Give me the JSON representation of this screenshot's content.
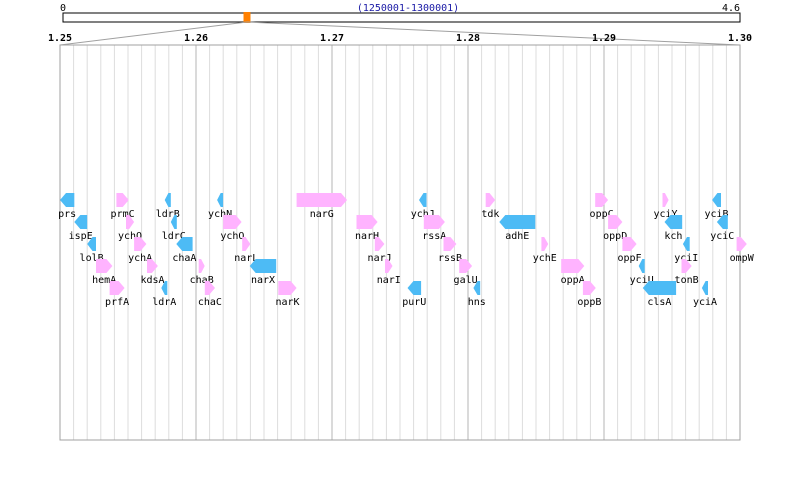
{
  "overview": {
    "start_label": "0",
    "end_label": "4.6",
    "range_label": "(1250001-1300001)",
    "genome_length_mb": 4.6,
    "window_start_mb": 1.25,
    "window_end_mb": 1.3,
    "marker_color": "#ff8000"
  },
  "detail": {
    "start_mb": 1.25,
    "end_mb": 1.3,
    "ticks": [
      {
        "pos": 1.25,
        "label": "1.25"
      },
      {
        "pos": 1.26,
        "label": "1.26"
      },
      {
        "pos": 1.27,
        "label": "1.27"
      },
      {
        "pos": 1.28,
        "label": "1.28"
      },
      {
        "pos": 1.29,
        "label": "1.29"
      },
      {
        "pos": 1.3,
        "label": "1.30"
      }
    ]
  },
  "colors": {
    "forward": "#ffb3ff",
    "reverse": "#4dbbf5",
    "axis": "#a0a0a0",
    "grid_minor": "#dddddd",
    "grid_major": "#b4b4b4"
  },
  "genes": [
    {
      "name": "prs",
      "start": 1.25,
      "end": 1.25105,
      "strand": "-",
      "row": 0
    },
    {
      "name": "prmC",
      "start": 1.25415,
      "end": 1.25505,
      "strand": "+",
      "row": 0
    },
    {
      "name": "ldrB",
      "start": 1.2577,
      "end": 1.25815,
      "strand": "-",
      "row": 0
    },
    {
      "name": "ychN",
      "start": 1.26155,
      "end": 1.26195,
      "strand": "-",
      "row": 0
    },
    {
      "name": "narG",
      "start": 1.2674,
      "end": 1.2711,
      "strand": "+",
      "row": 0
    },
    {
      "name": "ychJ",
      "start": 1.2764,
      "end": 1.27695,
      "strand": "-",
      "row": 0
    },
    {
      "name": "tdk",
      "start": 1.2813,
      "end": 1.282,
      "strand": "+",
      "row": 0
    },
    {
      "name": "oppC",
      "start": 1.28935,
      "end": 1.2903,
      "strand": "+",
      "row": 0
    },
    {
      "name": "yciY",
      "start": 1.2943,
      "end": 1.29475,
      "strand": "+",
      "row": 0
    },
    {
      "name": "yciB",
      "start": 1.29795,
      "end": 1.2986,
      "strand": "-",
      "row": 0
    },
    {
      "name": "ispE",
      "start": 1.25105,
      "end": 1.252,
      "strand": "-",
      "row": 1
    },
    {
      "name": "ychQ",
      "start": 1.25485,
      "end": 1.25545,
      "strand": "+",
      "row": 1
    },
    {
      "name": "ldrC",
      "start": 1.25815,
      "end": 1.25855,
      "strand": "-",
      "row": 1
    },
    {
      "name": "ychO",
      "start": 1.262,
      "end": 1.26335,
      "strand": "+",
      "row": 1
    },
    {
      "name": "narH",
      "start": 1.2718,
      "end": 1.27335,
      "strand": "+",
      "row": 1
    },
    {
      "name": "rssA",
      "start": 1.27675,
      "end": 1.2783,
      "strand": "+",
      "row": 1
    },
    {
      "name": "adhE",
      "start": 1.2823,
      "end": 1.28495,
      "strand": "-",
      "row": 1
    },
    {
      "name": "oppD",
      "start": 1.2903,
      "end": 1.29135,
      "strand": "+",
      "row": 1
    },
    {
      "name": "kch",
      "start": 1.29445,
      "end": 1.29575,
      "strand": "-",
      "row": 1
    },
    {
      "name": "yciC",
      "start": 1.2983,
      "end": 1.2991,
      "strand": "-",
      "row": 1
    },
    {
      "name": "lolB",
      "start": 1.252,
      "end": 1.25265,
      "strand": "-",
      "row": 2
    },
    {
      "name": "ychA",
      "start": 1.25545,
      "end": 1.25635,
      "strand": "+",
      "row": 2
    },
    {
      "name": "chaA",
      "start": 1.25855,
      "end": 1.25975,
      "strand": "-",
      "row": 2
    },
    {
      "name": "narL",
      "start": 1.2634,
      "end": 1.264,
      "strand": "+",
      "row": 2
    },
    {
      "name": "narJ",
      "start": 1.27315,
      "end": 1.27385,
      "strand": "+",
      "row": 2
    },
    {
      "name": "rssB",
      "start": 1.2782,
      "end": 1.27915,
      "strand": "+",
      "row": 2
    },
    {
      "name": "ychE",
      "start": 1.2854,
      "end": 1.2859,
      "strand": "+",
      "row": 2
    },
    {
      "name": "oppF",
      "start": 1.29135,
      "end": 1.2924,
      "strand": "+",
      "row": 2
    },
    {
      "name": "yciI",
      "start": 1.2958,
      "end": 1.2963,
      "strand": "-",
      "row": 2
    },
    {
      "name": "ompW",
      "start": 1.29975,
      "end": 1.3005,
      "strand": "+",
      "row": 2
    },
    {
      "name": "hemA",
      "start": 1.25265,
      "end": 1.25385,
      "strand": "+",
      "row": 3
    },
    {
      "name": "kdsA",
      "start": 1.2564,
      "end": 1.2572,
      "strand": "+",
      "row": 3
    },
    {
      "name": "chaB",
      "start": 1.2602,
      "end": 1.26055,
      "strand": "+",
      "row": 3
    },
    {
      "name": "narX",
      "start": 1.26395,
      "end": 1.2659,
      "strand": "-",
      "row": 3
    },
    {
      "name": "narI",
      "start": 1.2739,
      "end": 1.27445,
      "strand": "+",
      "row": 3
    },
    {
      "name": "galU",
      "start": 1.27935,
      "end": 1.2803,
      "strand": "+",
      "row": 3
    },
    {
      "name": "oppA",
      "start": 1.28685,
      "end": 1.28855,
      "strand": "+",
      "row": 3
    },
    {
      "name": "yciU",
      "start": 1.29255,
      "end": 1.29295,
      "strand": "-",
      "row": 3
    },
    {
      "name": "tonB",
      "start": 1.2957,
      "end": 1.29645,
      "strand": "+",
      "row": 3
    },
    {
      "name": "prfA",
      "start": 1.25365,
      "end": 1.25475,
      "strand": "+",
      "row": 4
    },
    {
      "name": "ldrA",
      "start": 1.25745,
      "end": 1.25785,
      "strand": "-",
      "row": 4
    },
    {
      "name": "chaC",
      "start": 1.26065,
      "end": 1.2614,
      "strand": "+",
      "row": 4
    },
    {
      "name": "narK",
      "start": 1.26605,
      "end": 1.2674,
      "strand": "+",
      "row": 4
    },
    {
      "name": "purU",
      "start": 1.27555,
      "end": 1.27655,
      "strand": "-",
      "row": 4
    },
    {
      "name": "hns",
      "start": 1.2804,
      "end": 1.2809,
      "strand": "-",
      "row": 4
    },
    {
      "name": "oppB",
      "start": 1.28845,
      "end": 1.2894,
      "strand": "+",
      "row": 4
    },
    {
      "name": "clsA",
      "start": 1.29285,
      "end": 1.2953,
      "strand": "-",
      "row": 4
    },
    {
      "name": "yciA",
      "start": 1.2972,
      "end": 1.29765,
      "strand": "-",
      "row": 4
    }
  ]
}
